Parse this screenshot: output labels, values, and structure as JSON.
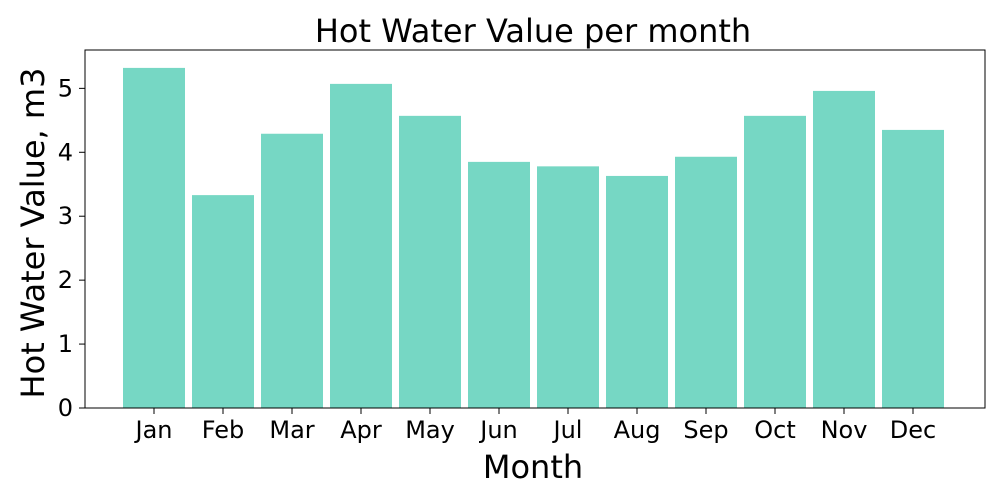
{
  "chart_data": {
    "type": "bar",
    "title": "Hot Water Value per month",
    "xlabel": "Month",
    "ylabel": "Hot Water Value, m3",
    "categories": [
      "Jan",
      "Feb",
      "Mar",
      "Apr",
      "May",
      "Jun",
      "Jul",
      "Aug",
      "Sep",
      "Oct",
      "Nov",
      "Dec"
    ],
    "values": [
      5.32,
      3.33,
      4.29,
      5.07,
      4.57,
      3.85,
      3.78,
      3.63,
      3.93,
      4.57,
      4.96,
      4.35
    ],
    "ylim": [
      0,
      5.6
    ],
    "yticks": [
      "0",
      "1",
      "2",
      "3",
      "4",
      "5"
    ],
    "bar_color": "#76d7c4",
    "grid": false,
    "legend": "none"
  }
}
